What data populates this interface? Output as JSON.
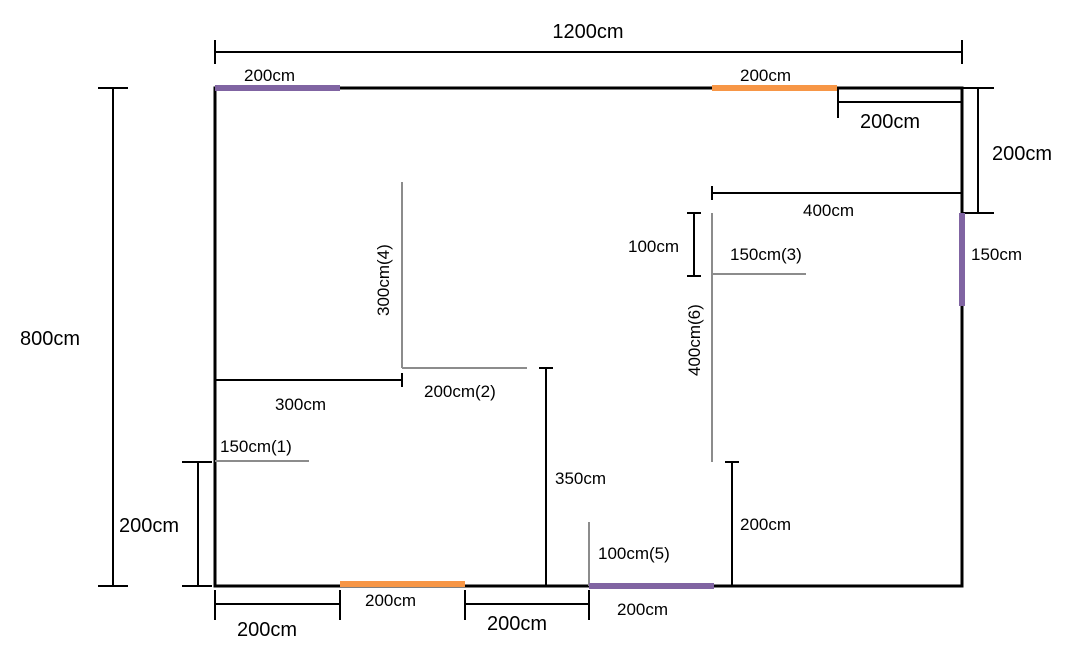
{
  "colors": {
    "wall": "#000000",
    "inner_wall": "#8c8c8c",
    "window": "#8064a2",
    "door": "#f79646"
  },
  "labels": {
    "total_width": "1200cm",
    "total_height": "800cm",
    "top_left_opening": "200cm",
    "top_right_opening": "200cm",
    "top_right_offset": "200cm",
    "right_offset": "200cm",
    "right_opening": "150cm",
    "right_room_width": "400cm",
    "right_room_gap": "100cm",
    "wall_3": "150cm(3)",
    "wall_6": "400cm(6)",
    "wall_4": "300cm(4)",
    "wall_2": "200cm(2)",
    "left_room_width": "300cm",
    "wall_1": "150cm(1)",
    "left_offset": "200cm",
    "mid_wall": "350cm",
    "right_bottom_wall": "200cm",
    "wall_5": "100cm(5)",
    "bottom_door": "200cm",
    "bottom_window": "200cm",
    "bottom_left_offset": "200cm",
    "bottom_mid_offset": "200cm"
  }
}
